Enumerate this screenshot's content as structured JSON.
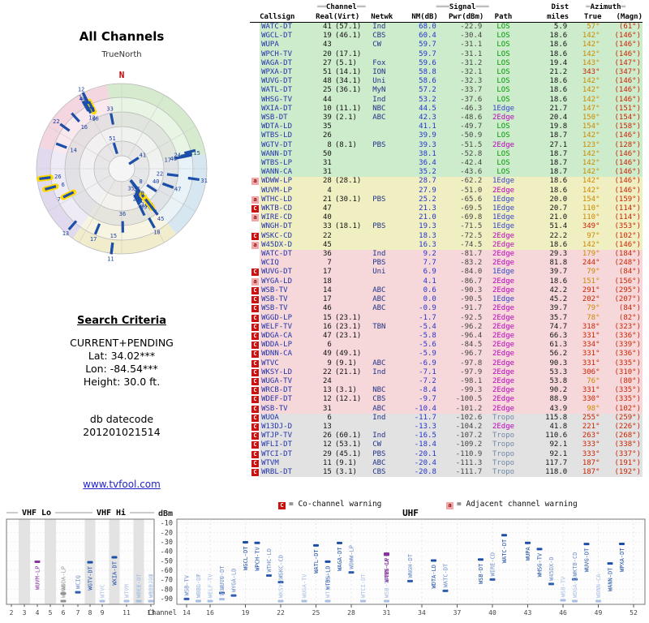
{
  "radar": {
    "title": "All Channels",
    "north_label": "TrueNorth",
    "north_letter": "N"
  },
  "search": {
    "heading": "Search Criteria",
    "mode": "CURRENT+PENDING",
    "lat": "Lat: 34.02***",
    "lon": "Lon: -84.54***",
    "height": "Height: 30.0 ft.",
    "datecode_label": "db datecode",
    "datecode": "201201021514"
  },
  "link": "www.tvfool.com",
  "legend": {
    "co_letter": "C",
    "co_text": "= Co-channel warning",
    "adj_letter": "a",
    "adj_text": "= Adjacent channel warning"
  },
  "table": {
    "group_headers": {
      "channel": {
        "pre": "══",
        "label": "Channel",
        "post": "══"
      },
      "signal": {
        "pre": "═══",
        "label": "Signal",
        "post": "═══"
      },
      "dist": {
        "pre": "",
        "label": "Dist",
        "post": ""
      },
      "azimuth": {
        "pre": "═",
        "label": "Azimuth",
        "post": "═"
      }
    },
    "headers": {
      "callsign": "Callsign",
      "real": "Real",
      "virt": "(Virt)",
      "netwk": "Netwk",
      "nm": "NM(dB)",
      "pwr": "Pwr(dBm)",
      "path": "Path",
      "miles": "miles",
      "true_az": "True",
      "magn": "(Magn)"
    },
    "rows": [
      [
        "",
        "WATC-DT",
        41,
        "(57.1)",
        "Ind",
        68.0,
        -22.9,
        "LOS",
        5.9,
        57,
        61
      ],
      [
        "",
        "WGCL-DT",
        19,
        "(46.1)",
        "CBS",
        60.4,
        -30.4,
        "LOS",
        18.6,
        142,
        146
      ],
      [
        "",
        "WUPA",
        43,
        "",
        "CW",
        59.7,
        -31.1,
        "LOS",
        18.6,
        142,
        146
      ],
      [
        "",
        "WPCH-TV",
        20,
        "(17.1)",
        "",
        59.7,
        -31.1,
        "LOS",
        18.6,
        142,
        146
      ],
      [
        "",
        "WAGA-DT",
        27,
        "(5.1)",
        "Fox",
        59.6,
        -31.2,
        "LOS",
        19.4,
        143,
        147
      ],
      [
        "",
        "WPXA-DT",
        51,
        "(14.1)",
        "ION",
        58.8,
        -32.1,
        "LOS",
        21.2,
        343,
        347
      ],
      [
        "",
        "WUVG-DT",
        48,
        "(34.1)",
        "Uni",
        58.6,
        -32.3,
        "LOS",
        18.6,
        142,
        146
      ],
      [
        "",
        "WATL-DT",
        25,
        "(36.1)",
        "MyN",
        57.2,
        -33.7,
        "LOS",
        18.6,
        142,
        146
      ],
      [
        "",
        "WHSG-TV",
        44,
        "",
        "Ind",
        53.2,
        -37.6,
        "LOS",
        18.6,
        142,
        146
      ],
      [
        "",
        "WXIA-DT",
        10,
        "(11.1)",
        "NBC",
        44.5,
        -46.3,
        "1Edge",
        21.7,
        147,
        151
      ],
      [
        "",
        "WSB-DT",
        39,
        "(2.1)",
        "ABC",
        42.3,
        -48.6,
        "2Edge",
        20.4,
        150,
        154
      ],
      [
        "",
        "WDTA-LD",
        35,
        "",
        "",
        41.1,
        -49.7,
        "LOS",
        19.8,
        154,
        158
      ],
      [
        "",
        "WTBS-LD",
        26,
        "",
        "",
        39.9,
        -50.9,
        "LOS",
        18.7,
        142,
        146
      ],
      [
        "",
        "WGTV-DT",
        8,
        "(8.1)",
        "PBS",
        39.3,
        -51.5,
        "2Edge",
        27.1,
        123,
        128
      ],
      [
        "",
        "WANN-DT",
        50,
        "",
        "",
        38.1,
        -52.8,
        "LOS",
        18.7,
        142,
        146
      ],
      [
        "",
        "WTBS-LP",
        31,
        "",
        "",
        36.4,
        -42.4,
        "LOS",
        18.7,
        142,
        146
      ],
      [
        "",
        "WANN-CA",
        31,
        "",
        "",
        35.2,
        -43.6,
        "LOS",
        18.7,
        142,
        146
      ],
      [
        "a",
        "WDWW-LP",
        28,
        "(28.1)",
        "",
        28.7,
        -62.2,
        "1Edge",
        18.6,
        142,
        146
      ],
      [
        "",
        "WUVM-LP",
        4,
        "",
        "",
        27.9,
        -51.0,
        "2Edge",
        18.6,
        142,
        146
      ],
      [
        "a",
        "WTHC-LD",
        21,
        "(30.1)",
        "PBS",
        25.2,
        -65.6,
        "1Edge",
        20.0,
        154,
        159
      ],
      [
        "C",
        "WKTB-CD",
        47,
        "",
        "",
        21.3,
        -69.5,
        "1Edge",
        20.7,
        110,
        114
      ],
      [
        "a",
        "WIRE-CD",
        40,
        "",
        "",
        21.0,
        -69.8,
        "1Edge",
        21.0,
        110,
        114
      ],
      [
        "",
        "WNGH-DT",
        33,
        "(18.1)",
        "PBS",
        19.3,
        -71.5,
        "1Edge",
        51.4,
        349,
        353
      ],
      [
        "C",
        "WSKC-CD",
        22,
        "",
        "",
        18.3,
        -72.5,
        "2Edge",
        22.2,
        97,
        102
      ],
      [
        "a",
        "W45DX-D",
        45,
        "",
        "",
        16.3,
        -74.5,
        "2Edge",
        18.6,
        142,
        146
      ],
      [
        "",
        "WATC-DT",
        36,
        "",
        "Ind",
        9.2,
        -81.7,
        "2Edge",
        29.3,
        179,
        184
      ],
      [
        "",
        "WCIQ",
        7,
        "",
        "PBS",
        7.7,
        -83.2,
        "2Edge",
        81.8,
        244,
        248
      ],
      [
        "C",
        "WUVG-DT",
        17,
        "",
        "Uni",
        6.9,
        -84.0,
        "1Edge",
        39.7,
        79,
        84
      ],
      [
        "a",
        "WYGA-LD",
        18,
        "",
        "",
        4.1,
        -86.7,
        "2Edge",
        18.6,
        151,
        156
      ],
      [
        "C",
        "WSB-TV",
        14,
        "",
        "ABC",
        0.6,
        -90.3,
        "2Edge",
        42.2,
        291,
        295
      ],
      [
        "C",
        "WSB-TV",
        17,
        "",
        "ABC",
        0.0,
        -90.5,
        "1Edge",
        45.2,
        202,
        207
      ],
      [
        "C",
        "WSB-TV",
        46,
        "",
        "ABC",
        -0.9,
        -91.7,
        "2Edge",
        39.7,
        79,
        84
      ],
      [
        "C",
        "WGGD-LP",
        15,
        "(23.1)",
        "",
        -1.7,
        -92.5,
        "2Edge",
        35.7,
        78,
        82
      ],
      [
        "C",
        "WELF-TV",
        16,
        "(23.1)",
        "TBN",
        -5.4,
        -96.2,
        "2Edge",
        74.7,
        318,
        323
      ],
      [
        "C",
        "WDGA-CA",
        47,
        "(23.1)",
        "",
        -5.8,
        -96.4,
        "2Edge",
        66.3,
        331,
        336
      ],
      [
        "C",
        "WDDA-LP",
        6,
        "",
        "",
        -5.6,
        -84.5,
        "2Edge",
        61.3,
        334,
        339
      ],
      [
        "C",
        "WDNN-CA",
        49,
        "(49.1)",
        "",
        -5.9,
        -96.7,
        "2Edge",
        56.2,
        331,
        336
      ],
      [
        "C",
        "WTVC",
        9,
        "(9.1)",
        "ABC",
        -6.9,
        -97.8,
        "2Edge",
        90.3,
        331,
        335
      ],
      [
        "C",
        "WKSY-LD",
        22,
        "(21.1)",
        "Ind",
        -7.1,
        -97.9,
        "2Edge",
        53.3,
        306,
        310
      ],
      [
        "C",
        "WUGA-TV",
        24,
        "",
        "",
        -7.2,
        -98.1,
        "2Edge",
        53.8,
        76,
        80
      ],
      [
        "C",
        "WRCB-DT",
        13,
        "(3.1)",
        "NBC",
        -8.4,
        -99.3,
        "2Edge",
        90.2,
        331,
        335
      ],
      [
        "C",
        "WDEF-DT",
        12,
        "(12.1)",
        "CBS",
        -9.7,
        -100.5,
        "2Edge",
        88.9,
        330,
        335
      ],
      [
        "C",
        "WSB-TV",
        31,
        "",
        "ABC",
        -10.4,
        -101.2,
        "2Edge",
        43.9,
        98,
        102
      ],
      [
        "C",
        "WUOA",
        6,
        "",
        "Ind",
        -11.7,
        -102.6,
        "Tropo",
        115.8,
        255,
        259
      ],
      [
        "C",
        "W13DJ-D",
        13,
        "",
        "",
        -13.3,
        -104.2,
        "2Edge",
        41.8,
        221,
        226
      ],
      [
        "C",
        "WTJP-TV",
        26,
        "(60.1)",
        "Ind",
        -16.5,
        -107.2,
        "Tropo",
        110.6,
        263,
        268
      ],
      [
        "C",
        "WFLI-DT",
        12,
        "(53.1)",
        "CW",
        -18.4,
        -109.2,
        "Tropo",
        92.1,
        333,
        338
      ],
      [
        "C",
        "WTCI-DT",
        29,
        "(45.1)",
        "PBS",
        -20.1,
        -110.9,
        "Tropo",
        92.1,
        333,
        337
      ],
      [
        "C",
        "WTVM",
        11,
        "(9.1)",
        "ABC",
        -20.4,
        -111.3,
        "Tropo",
        117.7,
        187,
        191
      ],
      [
        "C",
        "WRBL-DT",
        15,
        "(3.1)",
        "CBS",
        -20.8,
        -111.7,
        "Tropo",
        118.0,
        187,
        192
      ]
    ]
  },
  "bottom_plot": {
    "ylabel": "dBm",
    "xlabel": "Channel",
    "yticks": [
      -10,
      -20,
      -30,
      -40,
      -50,
      -60,
      -70,
      -80,
      -90
    ],
    "bands": [
      {
        "label": "VHF Lo"
      },
      {
        "label": "VHF Hi"
      },
      {
        "label": "UHF"
      }
    ],
    "vhf_ticks": [
      2,
      3,
      4,
      5,
      6,
      7,
      8,
      9,
      11,
      13
    ],
    "uhf_ticks": [
      14,
      16,
      19,
      22,
      25,
      28,
      31,
      34,
      37,
      40,
      43,
      46,
      49,
      52
    ]
  },
  "chart_data": [
    {
      "type": "scatter",
      "variant": "polar-azimuth",
      "title": "All Channels",
      "north_label": "TrueNorth",
      "angle": "true azimuth degrees (0 = North, clockwise)",
      "radius": "noise margin NM dB (center = strongest)",
      "points_fields": [
        "channel",
        "azimuth_true_deg",
        "nm_db",
        "highlighted"
      ],
      "points": [
        [
          41,
          57,
          68.0,
          0
        ],
        [
          19,
          142,
          60.4,
          0
        ],
        [
          43,
          142,
          59.7,
          0
        ],
        [
          20,
          142,
          59.7,
          0
        ],
        [
          27,
          143,
          59.6,
          0
        ],
        [
          51,
          343,
          58.8,
          0
        ],
        [
          48,
          142,
          58.6,
          0
        ],
        [
          25,
          142,
          57.2,
          0
        ],
        [
          44,
          142,
          53.2,
          0
        ],
        [
          10,
          147,
          44.5,
          0
        ],
        [
          39,
          150,
          42.3,
          0
        ],
        [
          35,
          154,
          41.1,
          0
        ],
        [
          26,
          142,
          39.9,
          0
        ],
        [
          8,
          123,
          39.3,
          0
        ],
        [
          50,
          142,
          38.1,
          0
        ],
        [
          31,
          142,
          36.4,
          1
        ],
        [
          31,
          142,
          35.2,
          1
        ],
        [
          28,
          142,
          28.7,
          0
        ],
        [
          4,
          142,
          27.9,
          1
        ],
        [
          21,
          154,
          25.2,
          0
        ],
        [
          47,
          110,
          21.3,
          0
        ],
        [
          40,
          110,
          21.0,
          0
        ],
        [
          33,
          349,
          19.3,
          0
        ],
        [
          22,
          97,
          18.3,
          0
        ],
        [
          45,
          142,
          16.3,
          0
        ],
        [
          36,
          179,
          9.2,
          0
        ],
        [
          7,
          244,
          7.7,
          1
        ],
        [
          17,
          79,
          6.9,
          0
        ],
        [
          18,
          151,
          4.1,
          0
        ],
        [
          14,
          291,
          0.6,
          0
        ],
        [
          17,
          202,
          0.0,
          0
        ],
        [
          46,
          79,
          -0.9,
          0
        ],
        [
          15,
          78,
          -1.7,
          0
        ],
        [
          16,
          318,
          -5.4,
          0
        ],
        [
          47,
          331,
          -5.8,
          0
        ],
        [
          6,
          334,
          -5.6,
          1
        ],
        [
          49,
          331,
          -5.9,
          0
        ],
        [
          9,
          331,
          -6.9,
          0
        ],
        [
          22,
          306,
          -7.1,
          0
        ],
        [
          24,
          76,
          -7.2,
          0
        ],
        [
          13,
          331,
          -8.4,
          0
        ],
        [
          12,
          330,
          -9.7,
          0
        ],
        [
          31,
          98,
          -10.4,
          0
        ],
        [
          6,
          255,
          -11.7,
          1
        ],
        [
          13,
          221,
          -13.3,
          0
        ],
        [
          26,
          263,
          -16.5,
          1
        ],
        [
          12,
          333,
          -18.4,
          0
        ],
        [
          29,
          333,
          -20.1,
          0
        ],
        [
          11,
          187,
          -20.4,
          0
        ],
        [
          15,
          187,
          -20.8,
          0
        ]
      ]
    },
    {
      "type": "scatter",
      "variant": "power-vs-channel",
      "xlabel": "Channel",
      "ylabel": "dBm",
      "ylim": [
        -96,
        -6
      ],
      "yticks": [
        -10,
        -20,
        -30,
        -40,
        -50,
        -60,
        -70,
        -80,
        -90
      ],
      "bands": [
        "VHF Lo",
        "VHF Hi",
        "UHF"
      ],
      "points_fields": [
        "callsign",
        "channel",
        "pwr_dbm",
        "class"
      ],
      "points": [
        [
          "WATC-DT",
          41,
          -22.9,
          "s"
        ],
        [
          "WGCL-DT",
          19,
          -30.4,
          "s"
        ],
        [
          "WUPA",
          43,
          -31.1,
          "s"
        ],
        [
          "WPCH-TV",
          20,
          -31.1,
          "s"
        ],
        [
          "WAGA-DT",
          27,
          -31.2,
          "s"
        ],
        [
          "WPXA-DT",
          51,
          -32.1,
          "s"
        ],
        [
          "WUVG-DT",
          48,
          -32.3,
          "s"
        ],
        [
          "WATL-DT",
          25,
          -33.7,
          "s"
        ],
        [
          "WHSG-TV",
          44,
          -37.6,
          "s"
        ],
        [
          "WXIA-DT",
          10,
          -46.3,
          "s"
        ],
        [
          "WSB-DT",
          39,
          -48.6,
          "s"
        ],
        [
          "WDTA-LD",
          35,
          -49.7,
          "s"
        ],
        [
          "WTBS-LD",
          26,
          -50.9,
          "s"
        ],
        [
          "WGTV-DT",
          8,
          -51.5,
          "s"
        ],
        [
          "WANN-DT",
          50,
          -52.8,
          "s"
        ],
        [
          "WTBS-LP",
          31,
          -42.4,
          "a"
        ],
        [
          "WANN-CA",
          31,
          -43.6,
          "a"
        ],
        [
          "WDWW-LP",
          28,
          -62.2,
          "m"
        ],
        [
          "WUVM-LP",
          4,
          -51.0,
          "a"
        ],
        [
          "WTHC-LD",
          21,
          -65.6,
          "m"
        ],
        [
          "WKTB-CD",
          47,
          -69.5,
          "m"
        ],
        [
          "WIRE-CD",
          40,
          -69.8,
          "m"
        ],
        [
          "WNGH-DT",
          33,
          -71.5,
          "m"
        ],
        [
          "WSKC-CD",
          22,
          -72.5,
          "m"
        ],
        [
          "W45DX-D",
          45,
          -74.5,
          "m"
        ],
        [
          "WATC-DT",
          36,
          -81.7,
          "m"
        ],
        [
          "WCIQ",
          7,
          -83.2,
          "m"
        ],
        [
          "WUVG-DT",
          17,
          -84.0,
          "m"
        ],
        [
          "WYGA-LD",
          18,
          -86.7,
          "m"
        ],
        [
          "WSB-TV",
          14,
          -90.3,
          "m"
        ],
        [
          "WSB-TV",
          17,
          -90.5,
          "w"
        ],
        [
          "WSB-TV",
          46,
          -91.7,
          "w"
        ],
        [
          "WGGD-LP",
          15,
          -92.5,
          "w"
        ],
        [
          "WELF-TV",
          16,
          -96.2,
          "w"
        ],
        [
          "WDGA-CA",
          47,
          -96.4,
          "w"
        ],
        [
          "WDDA-LP",
          6,
          -84.5,
          "x"
        ],
        [
          "WDNN-CA",
          49,
          -96.7,
          "w"
        ],
        [
          "WTVC",
          9,
          -97.8,
          "w"
        ],
        [
          "WKSY-LD",
          22,
          -97.9,
          "w"
        ],
        [
          "WUGA-TV",
          24,
          -98.1,
          "w"
        ],
        [
          "WRCB-DT",
          13,
          -99.3,
          "w"
        ],
        [
          "WDEF-DT",
          12,
          -100.5,
          "w"
        ],
        [
          "WSB-TV",
          31,
          -101.2,
          "w"
        ],
        [
          "WUOA",
          6,
          -102.6,
          "x"
        ],
        [
          "W13DJ-D",
          13,
          -104.2,
          "w"
        ],
        [
          "WTJP-TV",
          26,
          -107.2,
          "w"
        ],
        [
          "WFLI-DT",
          12,
          -109.2,
          "w"
        ],
        [
          "WTCI-DT",
          29,
          -110.9,
          "w"
        ],
        [
          "WTVM",
          11,
          -111.3,
          "w"
        ],
        [
          "WRBL-DT",
          15,
          -111.7,
          "w"
        ]
      ]
    }
  ]
}
